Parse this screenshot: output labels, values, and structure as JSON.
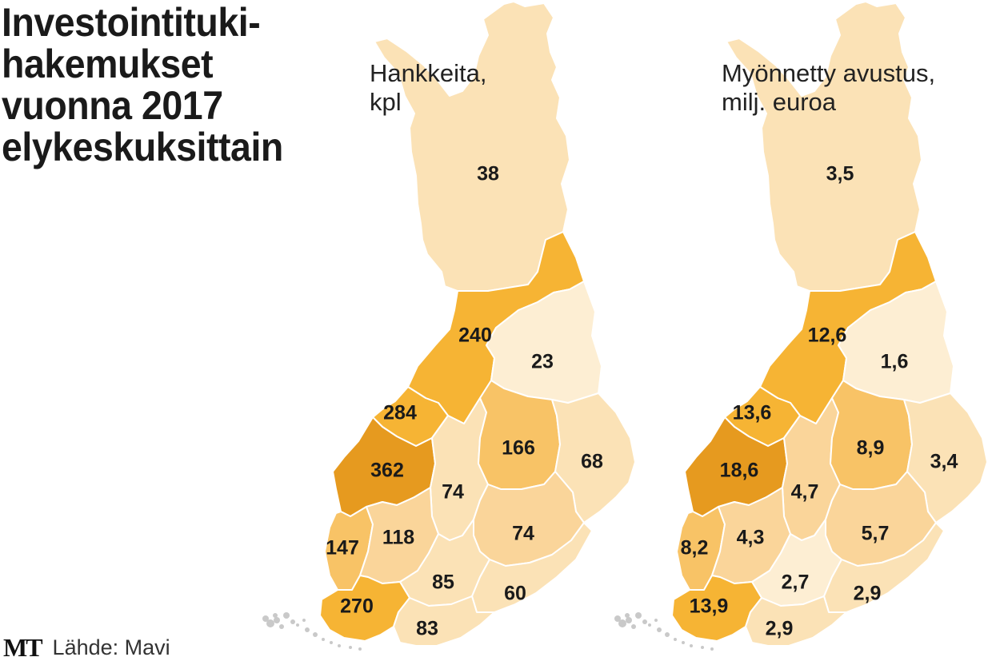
{
  "title": [
    "Investointituki-",
    "hakemukset",
    "vuonna 2017",
    "elykeskuksittain"
  ],
  "source": {
    "logo": "MT",
    "text": "Lähde: Mavi"
  },
  "colors": {
    "c1": "#fdeed3",
    "c2": "#fbe2b6",
    "c3": "#fad59a",
    "c4": "#f8c366",
    "c5": "#f6b434",
    "c6": "#e69a1f",
    "border": "#ffffff",
    "islands": "#c9c9c9"
  },
  "maps": [
    {
      "id": "left",
      "title": [
        "Hankkeita,",
        "kpl"
      ],
      "regions": {
        "lappi": {
          "value": "38",
          "color": "c2"
        },
        "pohjois-pohjanmaa": {
          "value": "240",
          "color": "c5"
        },
        "kainuu": {
          "value": "23",
          "color": "c1"
        },
        "keski-pohjanmaa": {
          "value": "284",
          "color": "c5"
        },
        "etela-pohjanmaa": {
          "value": "362",
          "color": "c6"
        },
        "keski-suomi": {
          "value": "74",
          "color": "c2"
        },
        "pohjois-savo": {
          "value": "166",
          "color": "c4"
        },
        "pohjois-karjala": {
          "value": "68",
          "color": "c2"
        },
        "pohjanmaa": {
          "value": "147",
          "color": "c4"
        },
        "pirkanmaa": {
          "value": "118",
          "color": "c3"
        },
        "etela-savo": {
          "value": "74",
          "color": "c3"
        },
        "hame": {
          "value": "85",
          "color": "c2"
        },
        "kaakkois-suomi": {
          "value": "60",
          "color": "c2"
        },
        "varsinais-suomi": {
          "value": "270",
          "color": "c5"
        },
        "uusimaa": {
          "value": "83",
          "color": "c2"
        }
      }
    },
    {
      "id": "right",
      "title": [
        "Myönnetty avustus,",
        "milj. euroa"
      ],
      "regions": {
        "lappi": {
          "value": "3,5",
          "color": "c2"
        },
        "pohjois-pohjanmaa": {
          "value": "12,6",
          "color": "c5"
        },
        "kainuu": {
          "value": "1,6",
          "color": "c1"
        },
        "keski-pohjanmaa": {
          "value": "13,6",
          "color": "c5"
        },
        "etela-pohjanmaa": {
          "value": "18,6",
          "color": "c6"
        },
        "keski-suomi": {
          "value": "4,7",
          "color": "c3"
        },
        "pohjois-savo": {
          "value": "8,9",
          "color": "c4"
        },
        "pohjois-karjala": {
          "value": "3,4",
          "color": "c2"
        },
        "pohjanmaa": {
          "value": "8,2",
          "color": "c4"
        },
        "pirkanmaa": {
          "value": "4,3",
          "color": "c3"
        },
        "etela-savo": {
          "value": "5,7",
          "color": "c3"
        },
        "hame": {
          "value": "2,7",
          "color": "c1"
        },
        "kaakkois-suomi": {
          "value": "2,9",
          "color": "c2"
        },
        "varsinais-suomi": {
          "value": "13,9",
          "color": "c5"
        },
        "uusimaa": {
          "value": "2,9",
          "color": "c2"
        }
      }
    }
  ]
}
